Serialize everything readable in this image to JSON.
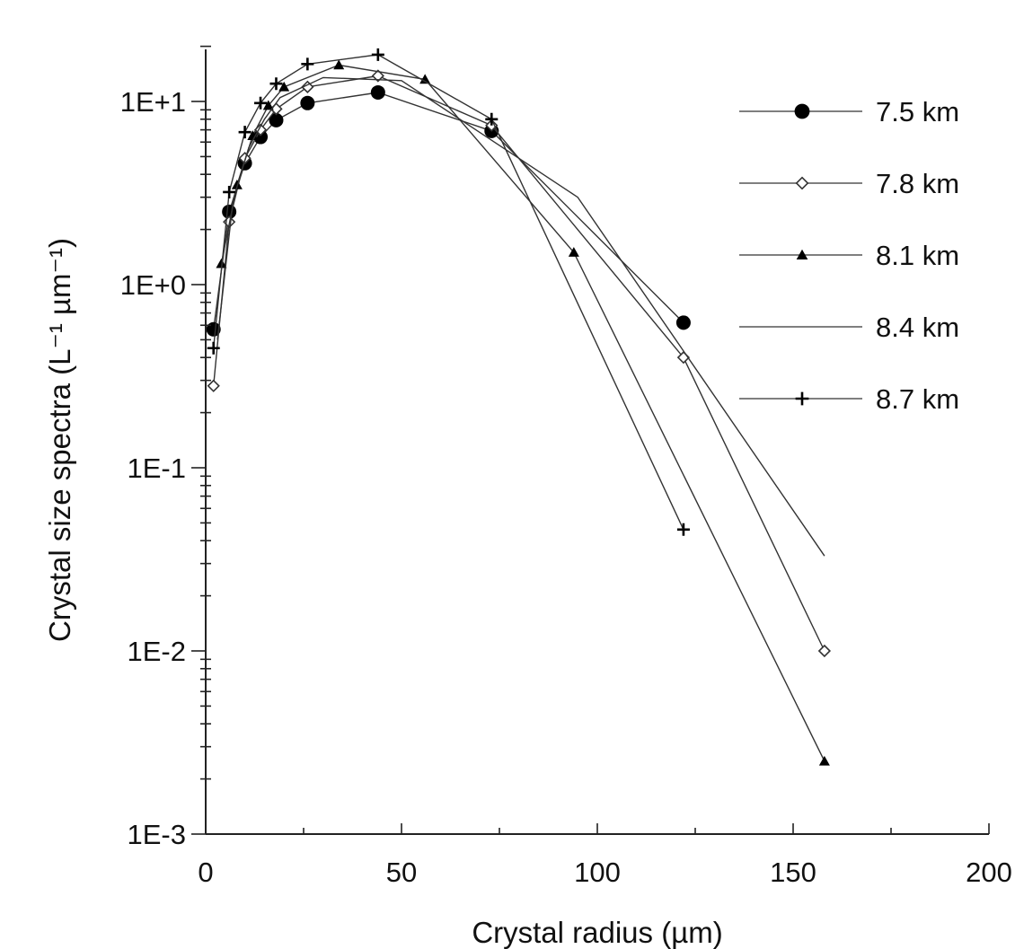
{
  "chart_data": {
    "type": "line",
    "title": "",
    "xlabel": "Crystal radius (µm)",
    "ylabel": "Crystal size spectra (L⁻¹ µm⁻¹)",
    "xlim": [
      0,
      200
    ],
    "ylim": [
      0.001,
      20
    ],
    "yscale": "log",
    "grid": false,
    "legend_position": "top-right",
    "x_ticks": [
      {
        "value": 0,
        "label": "0"
      },
      {
        "value": 50,
        "label": "50"
      },
      {
        "value": 100,
        "label": "100"
      },
      {
        "value": 150,
        "label": "150"
      },
      {
        "value": 200,
        "label": "200"
      }
    ],
    "y_ticks": [
      {
        "value": 0.001,
        "label": "1E-3"
      },
      {
        "value": 0.01,
        "label": "1E-2"
      },
      {
        "value": 0.1,
        "label": "1E-1"
      },
      {
        "value": 1,
        "label": "1E+0"
      },
      {
        "value": 10,
        "label": "1E+1"
      }
    ],
    "series": [
      {
        "name": "7.5 km",
        "marker": "filled-circle",
        "color": "#000000",
        "points": [
          [
            2,
            0.57
          ],
          [
            6,
            2.5
          ],
          [
            10,
            4.6
          ],
          [
            14,
            6.4
          ],
          [
            18,
            7.9
          ],
          [
            26,
            9.8
          ],
          [
            44,
            11.2
          ],
          [
            73,
            6.9
          ],
          [
            122,
            0.62
          ]
        ]
      },
      {
        "name": "7.8 km",
        "marker": "open-diamond",
        "color": "#000000",
        "points": [
          [
            2,
            0.28
          ],
          [
            6,
            2.2
          ],
          [
            10,
            4.9
          ],
          [
            14,
            7.0
          ],
          [
            18,
            9.1
          ],
          [
            26,
            12.0
          ],
          [
            44,
            13.8
          ],
          [
            73,
            7.4
          ],
          [
            122,
            0.4
          ],
          [
            158,
            0.01
          ]
        ]
      },
      {
        "name": "8.1 km",
        "marker": "filled-triangle",
        "color": "#000000",
        "points": [
          [
            4,
            1.3
          ],
          [
            8,
            3.5
          ],
          [
            12,
            6.5
          ],
          [
            16,
            9.5
          ],
          [
            20,
            12.0
          ],
          [
            34,
            15.8
          ],
          [
            56,
            13.2
          ],
          [
            94,
            1.5
          ],
          [
            158,
            0.0025
          ]
        ]
      },
      {
        "name": "8.4 km",
        "marker": "none",
        "color": "#000000",
        "points": [
          [
            3,
            0.5
          ],
          [
            7,
            2.9
          ],
          [
            11,
            5.6
          ],
          [
            15,
            8.0
          ],
          [
            19,
            10.5
          ],
          [
            30,
            13.5
          ],
          [
            50,
            13.0
          ],
          [
            95,
            3.0
          ],
          [
            158,
            0.033
          ]
        ]
      },
      {
        "name": "8.7 km",
        "marker": "plus",
        "color": "#000000",
        "points": [
          [
            2,
            0.45
          ],
          [
            6,
            3.2
          ],
          [
            10,
            6.8
          ],
          [
            14,
            9.8
          ],
          [
            18,
            12.5
          ],
          [
            26,
            16.0
          ],
          [
            44,
            18.0
          ],
          [
            73,
            8.0
          ],
          [
            122,
            0.046
          ]
        ]
      }
    ]
  }
}
